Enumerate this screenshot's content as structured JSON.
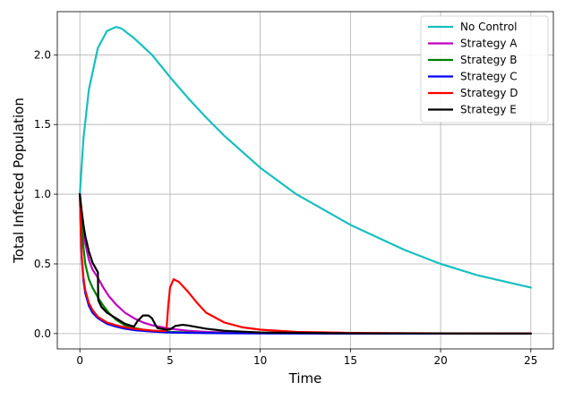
{
  "chart_data": {
    "type": "line",
    "xlabel": "Time",
    "ylabel": "Total Infected Population",
    "xlim": [
      -1.25,
      26.25
    ],
    "ylim": [
      -0.11,
      2.31
    ],
    "xticks": [
      0,
      5,
      10,
      15,
      20,
      25
    ],
    "yticks": [
      0.0,
      0.5,
      1.0,
      1.5,
      2.0
    ],
    "grid": true,
    "legend_position": "top-right",
    "series": [
      {
        "name": "No Control",
        "color": "#17bfbf",
        "x": [
          0,
          0.2,
          0.5,
          1.0,
          1.5,
          2.0,
          2.3,
          3.0,
          4.0,
          5.0,
          6.0,
          7.0,
          8.0,
          10.0,
          12.0,
          15.0,
          18.0,
          20.0,
          22.0,
          25.0
        ],
        "y": [
          1.0,
          1.4,
          1.75,
          2.05,
          2.17,
          2.2,
          2.19,
          2.12,
          2.0,
          1.84,
          1.69,
          1.55,
          1.42,
          1.19,
          1.0,
          0.78,
          0.6,
          0.5,
          0.42,
          0.33
        ]
      },
      {
        "name": "Strategy A",
        "color": "#bf00bf",
        "x": [
          0,
          0.1,
          0.2,
          0.3,
          0.5,
          0.7,
          1.0,
          1.3,
          1.6,
          2.0,
          2.5,
          3.0,
          3.5,
          4.0,
          5.0,
          6.0,
          7.0,
          8.0,
          10.0,
          15.0,
          20.0,
          25.0
        ],
        "y": [
          1.0,
          0.85,
          0.74,
          0.65,
          0.53,
          0.46,
          0.4,
          0.33,
          0.27,
          0.21,
          0.15,
          0.11,
          0.08,
          0.06,
          0.035,
          0.02,
          0.012,
          0.008,
          0.004,
          0.002,
          0.001,
          0.0
        ]
      },
      {
        "name": "Strategy B",
        "color": "#007f00",
        "x": [
          0,
          0.1,
          0.2,
          0.3,
          0.5,
          0.7,
          1.0,
          1.3,
          1.6,
          2.0,
          2.5,
          3.0,
          3.5,
          4.0,
          5.0,
          6.0,
          7.0,
          8.0,
          10.0,
          15.0,
          20.0,
          25.0
        ],
        "y": [
          1.0,
          0.8,
          0.62,
          0.5,
          0.39,
          0.33,
          0.26,
          0.2,
          0.15,
          0.1,
          0.06,
          0.04,
          0.028,
          0.02,
          0.012,
          0.008,
          0.005,
          0.003,
          0.002,
          0.001,
          0.0,
          0.0
        ]
      },
      {
        "name": "Strategy C",
        "color": "#0000ff",
        "x": [
          0,
          0.05,
          0.1,
          0.2,
          0.3,
          0.5,
          0.7,
          1.0,
          1.5,
          2.0,
          2.5,
          3.0,
          4.0,
          5.0,
          6.0,
          8.0,
          10.0,
          15.0,
          20.0,
          25.0
        ],
        "y": [
          1.0,
          0.75,
          0.55,
          0.38,
          0.29,
          0.2,
          0.15,
          0.11,
          0.07,
          0.05,
          0.035,
          0.025,
          0.014,
          0.008,
          0.005,
          0.002,
          0.001,
          0.0,
          0.0,
          0.0
        ],
        "note_fit": ""
      },
      {
        "name": "Strategy D",
        "color": "#ff0000",
        "x": [
          0,
          0.05,
          0.1,
          0.2,
          0.3,
          0.5,
          0.7,
          1.0,
          1.5,
          2.0,
          2.5,
          3.0,
          3.5,
          4.0,
          4.5,
          4.8,
          4.9,
          5.0,
          5.2,
          5.5,
          6.0,
          6.5,
          7.0,
          8.0,
          9.0,
          10.0,
          12.0,
          15.0,
          20.0,
          25.0
        ],
        "y": [
          1.0,
          0.75,
          0.56,
          0.4,
          0.31,
          0.22,
          0.17,
          0.12,
          0.08,
          0.06,
          0.045,
          0.035,
          0.028,
          0.022,
          0.018,
          0.02,
          0.2,
          0.33,
          0.39,
          0.37,
          0.3,
          0.22,
          0.15,
          0.08,
          0.045,
          0.028,
          0.012,
          0.005,
          0.002,
          0.001
        ]
      },
      {
        "name": "Strategy E",
        "color": "#000000",
        "x": [
          0,
          0.1,
          0.2,
          0.3,
          0.5,
          0.7,
          1.0,
          1.02,
          1.2,
          1.5,
          2.0,
          2.5,
          3.0,
          3.2,
          3.5,
          3.8,
          4.0,
          4.2,
          4.3,
          4.5,
          4.8,
          5.0,
          5.3,
          5.7,
          6.0,
          7.0,
          8.0,
          10.0,
          15.0,
          20.0,
          25.0
        ],
        "y": [
          1.0,
          0.88,
          0.78,
          0.7,
          0.59,
          0.51,
          0.44,
          0.24,
          0.19,
          0.15,
          0.11,
          0.07,
          0.05,
          0.09,
          0.13,
          0.13,
          0.11,
          0.06,
          0.04,
          0.035,
          0.028,
          0.03,
          0.055,
          0.063,
          0.058,
          0.035,
          0.02,
          0.008,
          0.002,
          0.001,
          0.0
        ]
      }
    ]
  }
}
